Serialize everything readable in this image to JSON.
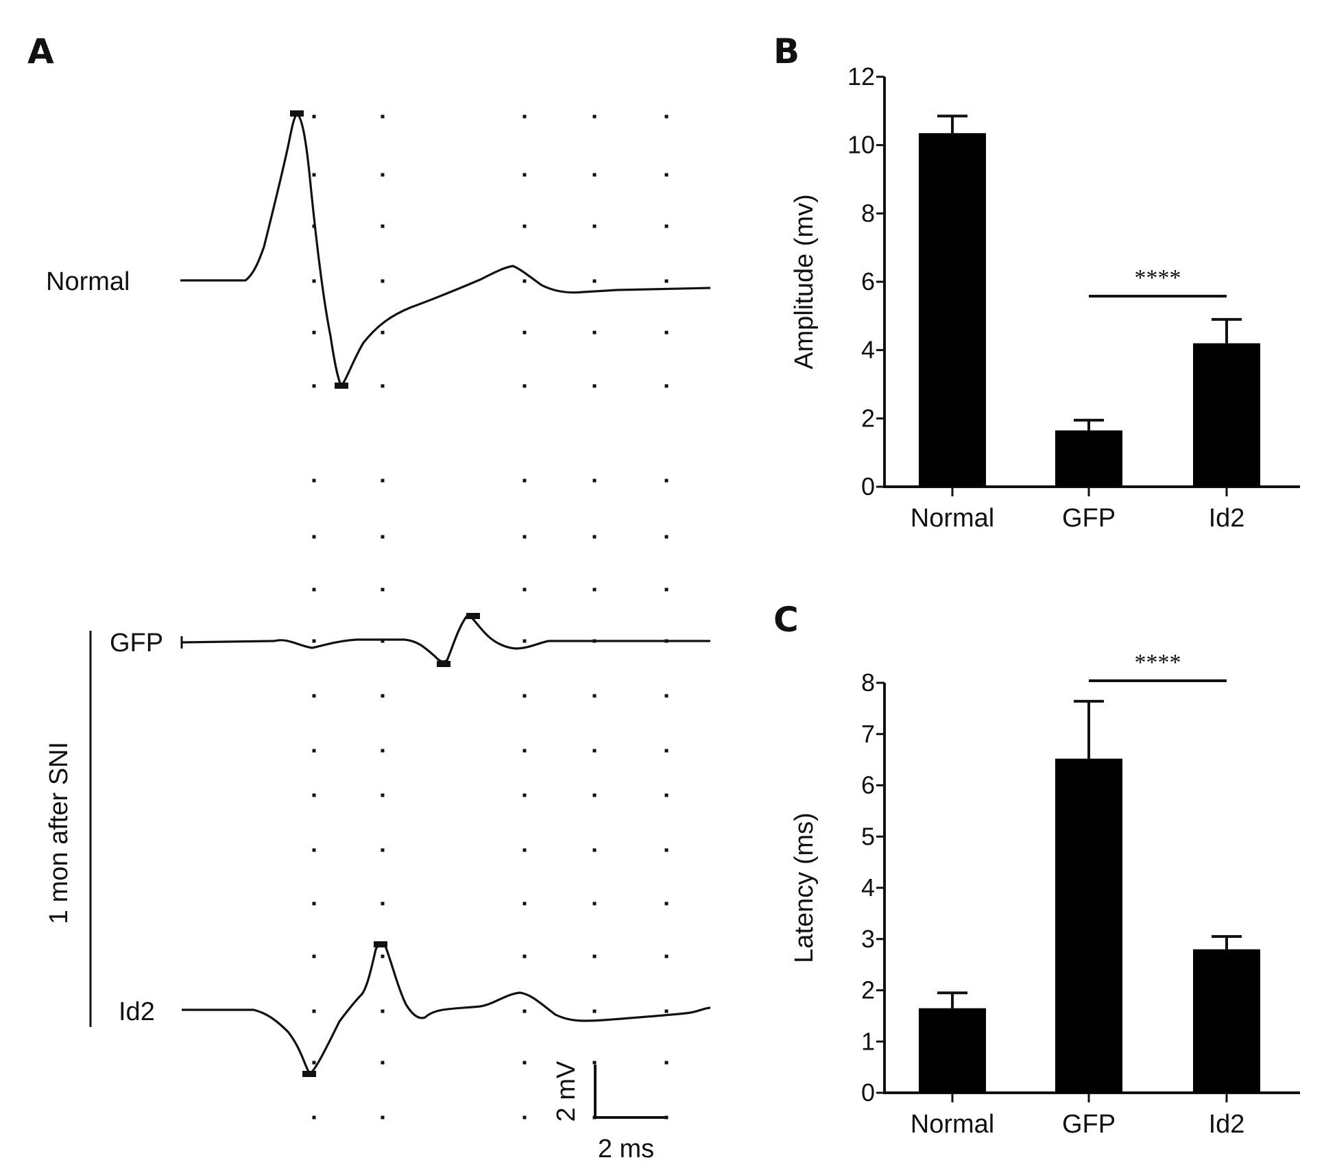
{
  "panel_a": {
    "letter": "A",
    "trace_labels": {
      "normal": "Normal",
      "gfp": "GFP",
      "id2": "Id2"
    },
    "group_label": "1 mon after SNI",
    "scale_bar": {
      "vertical": "2 mV",
      "horizontal": "2 ms"
    }
  },
  "chart_data": [
    {
      "panel": "B",
      "type": "bar",
      "title": "",
      "xlabel": "",
      "ylabel": "Amplitude (mv)",
      "ylim": [
        0,
        12
      ],
      "yticks": [
        0,
        2,
        4,
        6,
        8,
        10,
        12
      ],
      "categories": [
        "Normal",
        "GFP",
        "Id2"
      ],
      "values": [
        10.35,
        1.65,
        4.2
      ],
      "errors": [
        0.5,
        0.3,
        0.7
      ],
      "bar_color": "#000000",
      "significance": {
        "from": "GFP",
        "to": "Id2",
        "label": "****"
      }
    },
    {
      "panel": "C",
      "type": "bar",
      "title": "",
      "xlabel": "",
      "ylabel": "Latency (ms)",
      "ylim": [
        0,
        8
      ],
      "yticks": [
        0,
        1,
        2,
        3,
        4,
        5,
        6,
        7,
        8
      ],
      "categories": [
        "Normal",
        "GFP",
        "Id2"
      ],
      "values": [
        1.65,
        6.52,
        2.8
      ],
      "errors": [
        0.3,
        1.12,
        0.25
      ],
      "bar_color": "#000000",
      "significance": {
        "from": "GFP",
        "to": "Id2",
        "label": "****"
      }
    }
  ]
}
